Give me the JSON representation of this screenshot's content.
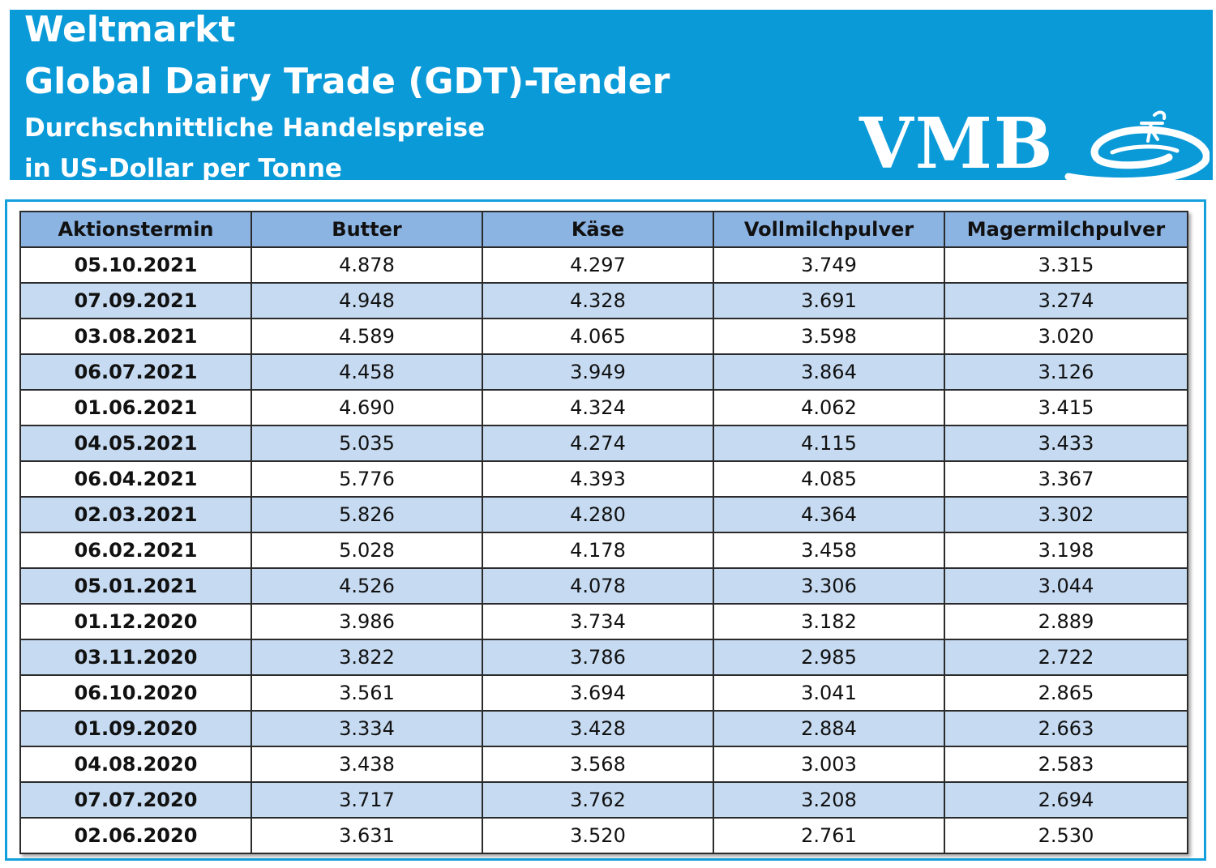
{
  "header": {
    "line1": "Weltmarkt",
    "line2": "Global Dairy Trade (GDT)-Tender",
    "line3": "Durchschnittliche Handelspreise",
    "line4": "in US-Dollar per Tonne",
    "logo_text": "VMB",
    "banner_color": "#0b9ad8"
  },
  "table": {
    "columns": [
      "Aktionstermin",
      "Butter",
      "Käse",
      "Vollmilchpulver",
      "Magermilchpulver"
    ],
    "rows": [
      [
        "05.10.2021",
        "4.878",
        "4.297",
        "3.749",
        "3.315"
      ],
      [
        "07.09.2021",
        "4.948",
        "4.328",
        "3.691",
        "3.274"
      ],
      [
        "03.08.2021",
        "4.589",
        "4.065",
        "3.598",
        "3.020"
      ],
      [
        "06.07.2021",
        "4.458",
        "3.949",
        "3.864",
        "3.126"
      ],
      [
        "01.06.2021",
        "4.690",
        "4.324",
        "4.062",
        "3.415"
      ],
      [
        "04.05.2021",
        "5.035",
        "4.274",
        "4.115",
        "3.433"
      ],
      [
        "06.04.2021",
        "5.776",
        "4.393",
        "4.085",
        "3.367"
      ],
      [
        "02.03.2021",
        "5.826",
        "4.280",
        "4.364",
        "3.302"
      ],
      [
        "06.02.2021",
        "5.028",
        "4.178",
        "3.458",
        "3.198"
      ],
      [
        "05.01.2021",
        "4.526",
        "4.078",
        "3.306",
        "3.044"
      ],
      [
        "01.12.2020",
        "3.986",
        "3.734",
        "3.182",
        "2.889"
      ],
      [
        "03.11.2020",
        "3.822",
        "3.786",
        "2.985",
        "2.722"
      ],
      [
        "06.10.2020",
        "3.561",
        "3.694",
        "3.041",
        "2.865"
      ],
      [
        "01.09.2020",
        "3.334",
        "3.428",
        "2.884",
        "2.663"
      ],
      [
        "04.08.2020",
        "3.438",
        "3.568",
        "3.003",
        "2.583"
      ],
      [
        "07.07.2020",
        "3.717",
        "3.762",
        "3.208",
        "2.694"
      ],
      [
        "02.06.2020",
        "3.631",
        "3.520",
        "2.761",
        "2.530"
      ]
    ],
    "header_color": "#8cb4e3",
    "alt_row_color": "#c6daf1"
  }
}
